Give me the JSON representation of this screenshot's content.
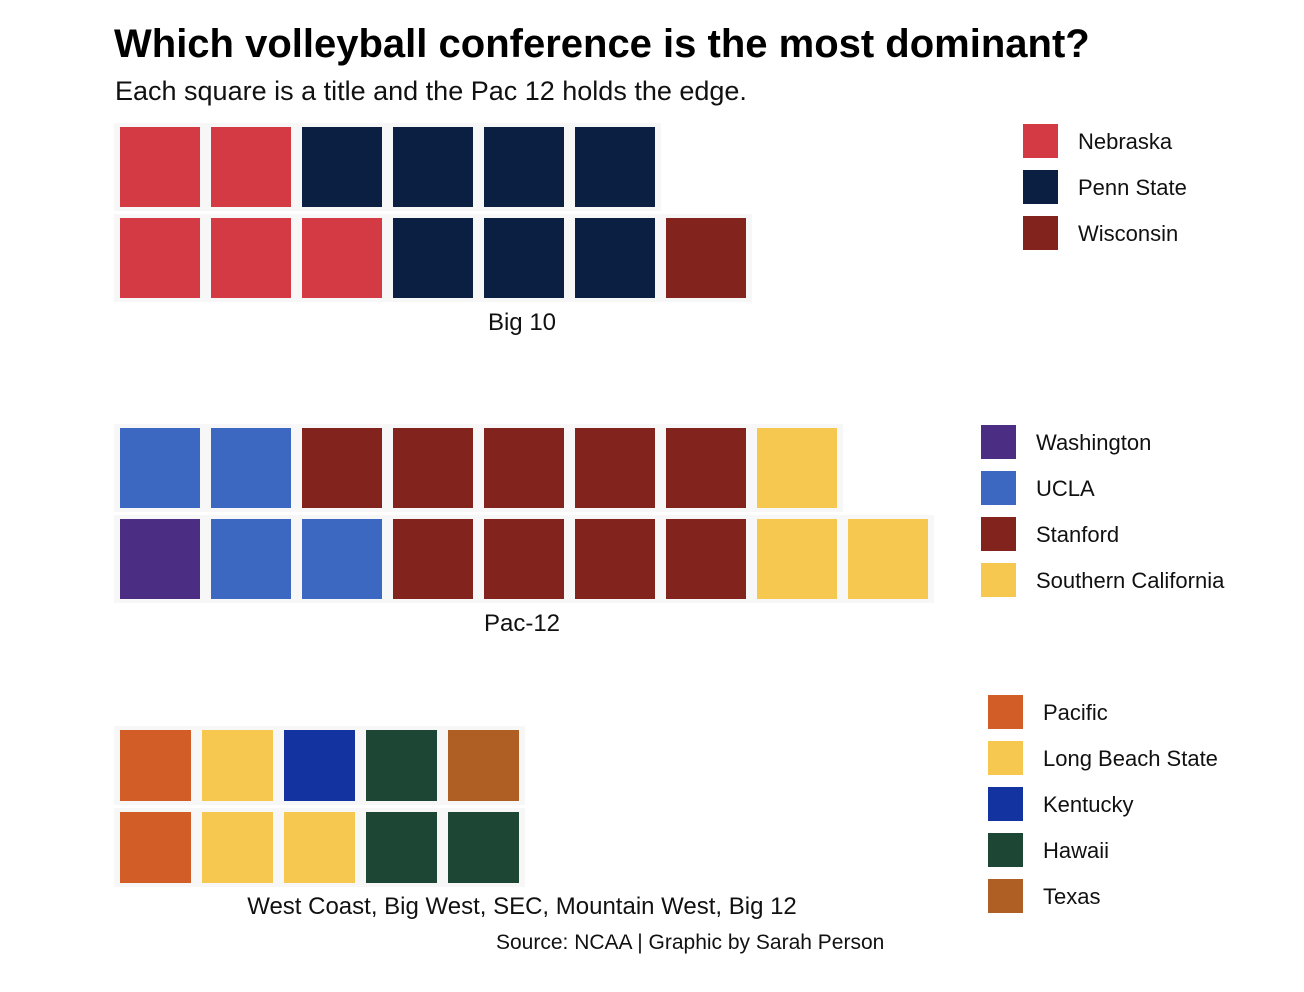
{
  "title": "Which volleyball conference is the most dominant?",
  "subtitle": "Each square is a title and the Pac 12 holds the edge.",
  "source": "Source: NCAA | Graphic by Sarah Person",
  "chart_data": [
    {
      "type": "waffle",
      "facet_label": "Big 10",
      "rows": 2,
      "legend": [
        {
          "name": "Nebraska",
          "color": "#D33A43"
        },
        {
          "name": "Penn State",
          "color": "#0B1F42"
        },
        {
          "name": "Wisconsin",
          "color": "#82231E"
        }
      ],
      "squares": [
        [
          "Nebraska",
          "Nebraska",
          "Penn State",
          "Penn State",
          "Penn State",
          "Penn State"
        ],
        [
          "Nebraska",
          "Nebraska",
          "Nebraska",
          "Penn State",
          "Penn State",
          "Penn State",
          "Wisconsin"
        ]
      ],
      "totals": {
        "Nebraska": 5,
        "Penn State": 7,
        "Wisconsin": 1
      }
    },
    {
      "type": "waffle",
      "facet_label": "Pac-12",
      "rows": 2,
      "legend": [
        {
          "name": "Washington",
          "color": "#4B2E83"
        },
        {
          "name": "UCLA",
          "color": "#3D68C1"
        },
        {
          "name": "Stanford",
          "color": "#82231E"
        },
        {
          "name": "Southern California",
          "color": "#F6C850"
        }
      ],
      "squares": [
        [
          "UCLA",
          "UCLA",
          "Stanford",
          "Stanford",
          "Stanford",
          "Stanford",
          "Stanford",
          "Southern California"
        ],
        [
          "Washington",
          "UCLA",
          "UCLA",
          "Stanford",
          "Stanford",
          "Stanford",
          "Stanford",
          "Southern California",
          "Southern California"
        ]
      ],
      "totals": {
        "Washington": 1,
        "UCLA": 4,
        "Stanford": 9,
        "Southern California": 3
      }
    },
    {
      "type": "waffle",
      "facet_label": "West Coast, Big West, SEC, Mountain West, Big 12",
      "rows": 2,
      "legend": [
        {
          "name": "Pacific",
          "color": "#D35D27"
        },
        {
          "name": "Long Beach State",
          "color": "#F6C850"
        },
        {
          "name": "Kentucky",
          "color": "#1233A0"
        },
        {
          "name": "Hawaii",
          "color": "#1D4634"
        },
        {
          "name": "Texas",
          "color": "#B05F24"
        }
      ],
      "squares": [
        [
          "Pacific",
          "Long Beach State",
          "Kentucky",
          "Hawaii",
          "Texas"
        ],
        [
          "Pacific",
          "Long Beach State",
          "Long Beach State",
          "Hawaii",
          "Hawaii"
        ]
      ],
      "totals": {
        "Pacific": 2,
        "Long Beach State": 3,
        "Kentucky": 1,
        "Hawaii": 3,
        "Texas": 1
      }
    }
  ]
}
